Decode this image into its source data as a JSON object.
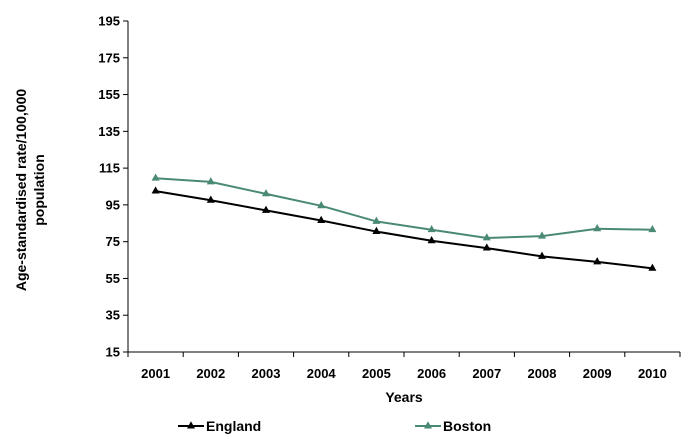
{
  "chart_data": {
    "type": "line",
    "title": "",
    "xlabel": "Years",
    "ylabel_line1": "Age-standardised rate/100,000",
    "ylabel_line2": "population",
    "x": [
      "2001",
      "2002",
      "2003",
      "2004",
      "2005",
      "2006",
      "2007",
      "2008",
      "2009",
      "2010"
    ],
    "ylim": [
      15,
      195
    ],
    "yticks": [
      15,
      35,
      55,
      75,
      95,
      115,
      135,
      155,
      175,
      195
    ],
    "grid": false,
    "legend_position": "bottom",
    "series": [
      {
        "name": "England",
        "color": "#000000",
        "marker": "triangle",
        "values": [
          102.5,
          97.5,
          92,
          86.5,
          80.5,
          75.5,
          71.5,
          67,
          64,
          60.5
        ]
      },
      {
        "name": "Boston",
        "color": "#4a8a72",
        "marker": "triangle",
        "values": [
          109.5,
          107.5,
          101,
          94.5,
          86,
          81.5,
          77,
          78,
          82,
          81.5
        ]
      }
    ]
  }
}
